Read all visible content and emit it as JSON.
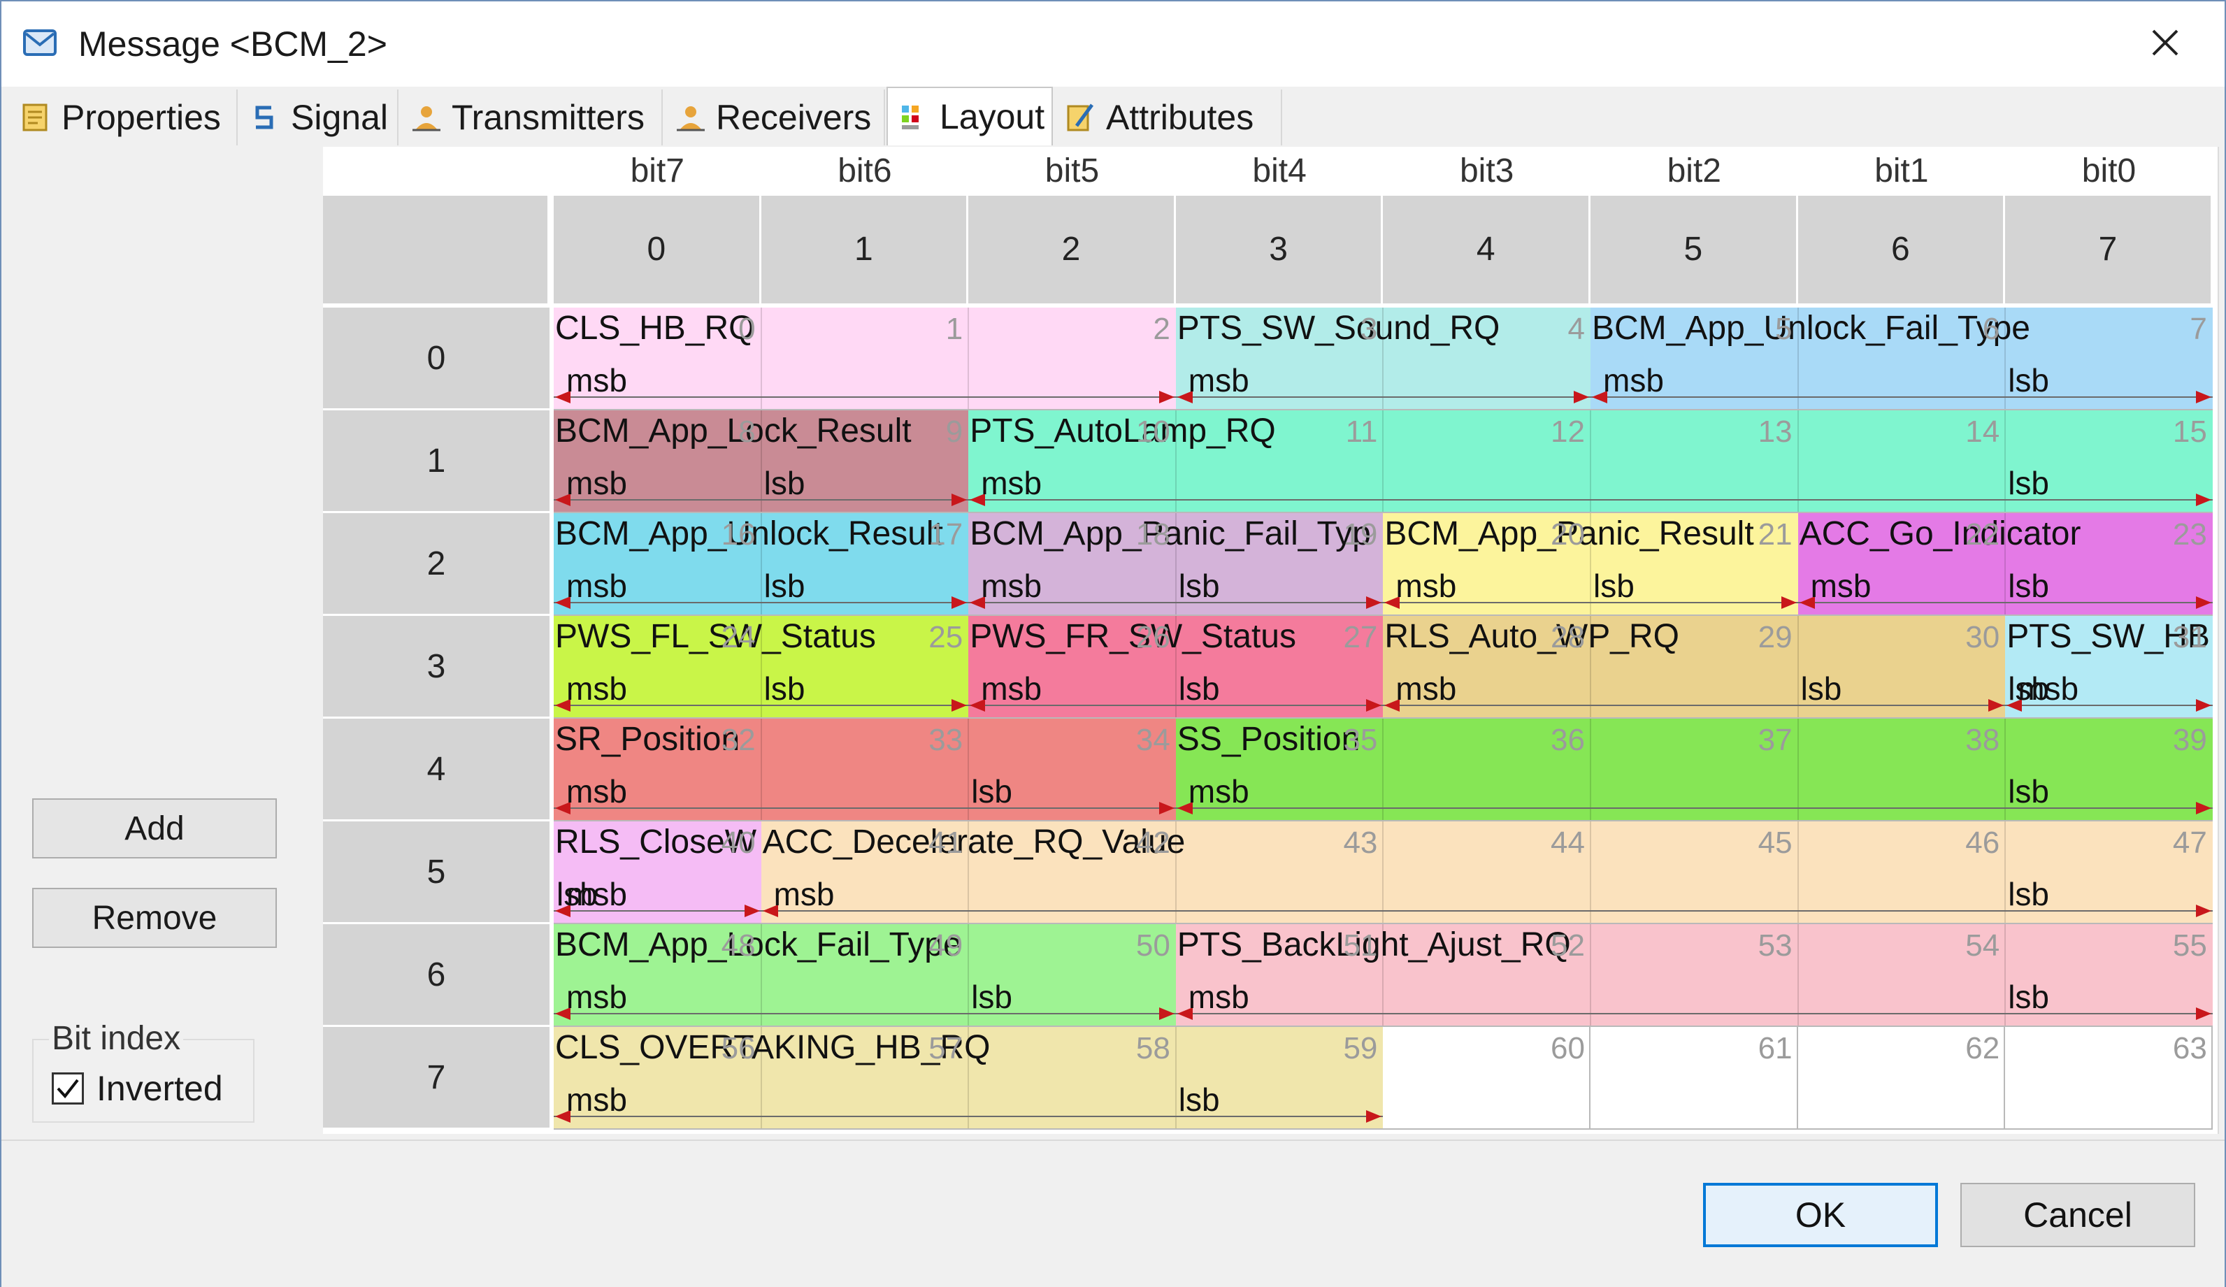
{
  "window": {
    "title": "Message <BCM_2>"
  },
  "tabs": [
    {
      "label": "Properties",
      "icon": "properties-icon"
    },
    {
      "label": "Signal",
      "icon": "signal-icon"
    },
    {
      "label": "Transmitters",
      "icon": "transmitters-icon"
    },
    {
      "label": "Receivers",
      "icon": "receivers-icon"
    },
    {
      "label": "Layout",
      "icon": "layout-icon",
      "active": true
    },
    {
      "label": "Attributes",
      "icon": "attributes-icon"
    }
  ],
  "layout": {
    "bit_headers": [
      "bit7",
      "bit6",
      "bit5",
      "bit4",
      "bit3",
      "bit2",
      "bit1",
      "bit0"
    ],
    "column_headers": [
      "0",
      "1",
      "2",
      "3",
      "4",
      "5",
      "6",
      "7"
    ],
    "row_headers": [
      "0",
      "1",
      "2",
      "3",
      "4",
      "5",
      "6",
      "7"
    ],
    "bit_numbers": [
      "0",
      "1",
      "2",
      "3",
      "4",
      "5",
      "6",
      "7",
      "8",
      "9",
      "10",
      "11",
      "12",
      "13",
      "14",
      "15",
      "16",
      "17",
      "18",
      "19",
      "20",
      "21",
      "22",
      "23",
      "24",
      "25",
      "26",
      "27",
      "28",
      "29",
      "30",
      "31",
      "32",
      "33",
      "34",
      "35",
      "36",
      "37",
      "38",
      "39",
      "40",
      "41",
      "42",
      "43",
      "44",
      "45",
      "46",
      "47",
      "48",
      "49",
      "50",
      "51",
      "52",
      "53",
      "54",
      "55",
      "56",
      "57",
      "58",
      "59",
      "60",
      "61",
      "62",
      "63"
    ],
    "labels": {
      "msb": "msb",
      "lsb": "lsb"
    },
    "signals": [
      {
        "name": "CLS_HB_RQ",
        "color": "#ffd9f5",
        "segments": [
          [
            0,
            0,
            3,
            true,
            false
          ]
        ]
      },
      {
        "name": "PTS_SW_Sound_RQ",
        "color": "#b2ece9",
        "segments": [
          [
            0,
            3,
            5,
            true,
            false
          ]
        ]
      },
      {
        "name": "BCM_App_Unlock_Fail_Type",
        "color": "#a9daf7",
        "segments": [
          [
            0,
            5,
            8,
            true,
            true
          ]
        ]
      },
      {
        "name": "BCM_App_Lock_Result",
        "color": "#c98b95",
        "segments": [
          [
            1,
            0,
            2,
            true,
            true
          ]
        ]
      },
      {
        "name": "PTS_AutoLamp_RQ",
        "color": "#7ff5cf",
        "segments": [
          [
            1,
            2,
            8,
            true,
            true
          ]
        ]
      },
      {
        "name": "BCM_App_Unlock_Result",
        "color": "#7fdbed",
        "segments": [
          [
            2,
            0,
            2,
            true,
            true
          ]
        ]
      },
      {
        "name": "BCM_App_Panic_Fail_Typ",
        "color": "#d4b3d9",
        "segments": [
          [
            2,
            2,
            4,
            true,
            true
          ]
        ]
      },
      {
        "name": "BCM_App_Panic_Result",
        "color": "#fcf49c",
        "segments": [
          [
            2,
            4,
            6,
            true,
            true
          ]
        ]
      },
      {
        "name": "ACC_Go_Indicator",
        "color": "#e47ae6",
        "segments": [
          [
            2,
            6,
            8,
            true,
            true
          ]
        ]
      },
      {
        "name": "PWS_FL_SW_Status",
        "color": "#c9f548",
        "segments": [
          [
            3,
            0,
            2,
            true,
            true
          ]
        ]
      },
      {
        "name": "PWS_FR_SW_Status",
        "color": "#f47b9c",
        "segments": [
          [
            3,
            2,
            4,
            true,
            true
          ]
        ]
      },
      {
        "name": "RLS_Auto_WP_RQ",
        "color": "#ead28e",
        "segments": [
          [
            3,
            4,
            7,
            true,
            true
          ]
        ]
      },
      {
        "name": "PTS_SW_HB",
        "color": "#b3eaf5",
        "segments": [
          [
            3,
            7,
            8,
            true,
            true
          ]
        ]
      },
      {
        "name": "SR_Position",
        "color": "#ef8683",
        "segments": [
          [
            4,
            0,
            3,
            true,
            true
          ]
        ]
      },
      {
        "name": "SS_Position",
        "color": "#86e655",
        "segments": [
          [
            4,
            3,
            8,
            true,
            true
          ]
        ]
      },
      {
        "name": "RLS_CloseW",
        "color": "#f5bcf5",
        "segments": [
          [
            5,
            0,
            1,
            true,
            true
          ]
        ]
      },
      {
        "name": "ACC_Decelerate_RQ_Value",
        "color": "#fbe2bd",
        "segments": [
          [
            5,
            1,
            8,
            true,
            true
          ]
        ]
      },
      {
        "name": "BCM_App_Lock_Fail_Type",
        "color": "#9ef393",
        "segments": [
          [
            6,
            0,
            3,
            true,
            true
          ]
        ]
      },
      {
        "name": "PTS_BackLight_Ajust_RQ",
        "color": "#f9c3cc",
        "segments": [
          [
            6,
            3,
            8,
            true,
            true
          ]
        ]
      },
      {
        "name": "CLS_OVERTAKING_HB_RQ",
        "color": "#f0e6ac",
        "segments": [
          [
            7,
            0,
            4,
            true,
            true
          ]
        ]
      }
    ]
  },
  "side": {
    "add_label": "Add",
    "remove_label": "Remove",
    "bit_index_label": "Bit index",
    "inverted_label": "Inverted",
    "inverted_checked": true
  },
  "footer": {
    "ok_label": "OK",
    "cancel_label": "Cancel"
  }
}
